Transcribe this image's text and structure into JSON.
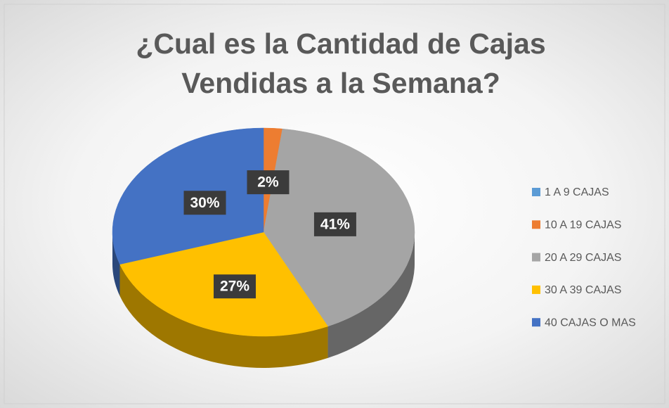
{
  "chart_data": {
    "type": "pie3d",
    "title": "¿Cual es la Cantidad de Cajas Vendidas a la Semana?",
    "categories": [
      "1 A 9 CAJAS",
      "10 A 19 CAJAS",
      "20 A 29 CAJAS",
      "30 A 39 CAJAS",
      "40 CAJAS O MAS"
    ],
    "values": [
      0,
      2,
      41,
      27,
      30
    ],
    "value_labels": [
      null,
      "2%",
      "41%",
      "27%",
      "30%"
    ],
    "colors": [
      "#5b9bd5",
      "#ed7d31",
      "#a5a5a5",
      "#ffc000",
      "#4472c4"
    ],
    "legend": "right"
  }
}
